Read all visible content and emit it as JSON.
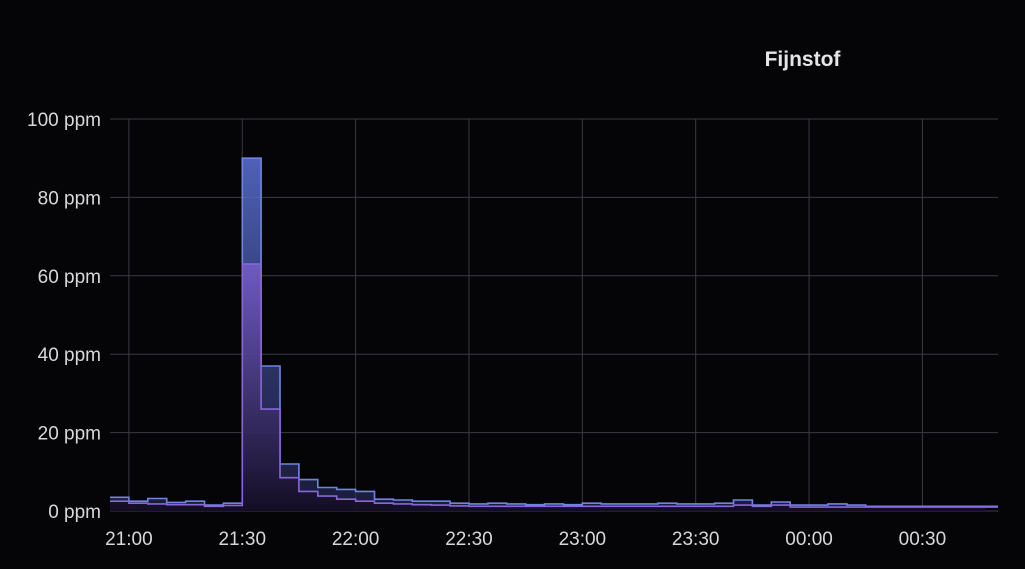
{
  "chart_data": {
    "type": "area",
    "title": "Fijnstof",
    "xlabel": "",
    "ylabel": "",
    "y_unit": "ppm",
    "ylim": [
      0,
      100
    ],
    "y_ticks": [
      0,
      20,
      40,
      60,
      80,
      100
    ],
    "y_tick_labels": [
      "0 ppm",
      "20 ppm",
      "40 ppm",
      "60 ppm",
      "80 ppm",
      "100 ppm"
    ],
    "x_ticks": [
      "21:00",
      "21:30",
      "22:00",
      "22:30",
      "23:00",
      "23:30",
      "00:00",
      "00:30"
    ],
    "x_start": "20:55",
    "x_end": "00:50",
    "step": "stepped",
    "grid": true,
    "legend": "none",
    "series": [
      {
        "color": "#6f85e4",
        "times": [
          "20:55",
          "21:00",
          "21:05",
          "21:10",
          "21:15",
          "21:20",
          "21:25",
          "21:30",
          "21:35",
          "21:40",
          "21:45",
          "21:50",
          "21:55",
          "22:00",
          "22:05",
          "22:10",
          "22:15",
          "22:20",
          "22:25",
          "22:30",
          "22:35",
          "22:40",
          "22:45",
          "22:50",
          "22:55",
          "23:00",
          "23:05",
          "23:10",
          "23:15",
          "23:20",
          "23:25",
          "23:30",
          "23:35",
          "23:40",
          "23:45",
          "23:50",
          "23:55",
          "00:00",
          "00:05",
          "00:10",
          "00:15",
          "00:20",
          "00:25",
          "00:30",
          "00:35",
          "00:40",
          "00:45",
          "00:50"
        ],
        "values": [
          3.5,
          2.5,
          3.2,
          2.2,
          2.5,
          1.5,
          2.0,
          90,
          37,
          12,
          8,
          6,
          5.5,
          5,
          3,
          2.8,
          2.5,
          2.5,
          2,
          1.8,
          2,
          1.8,
          1.6,
          1.8,
          1.6,
          2,
          1.8,
          1.8,
          1.8,
          2,
          1.8,
          1.8,
          2,
          2.8,
          1.5,
          2.3,
          1.5,
          1.5,
          1.8,
          1.5,
          1.2,
          1.2,
          1.2,
          1.2,
          1.2,
          1.2,
          1.2,
          1.2
        ]
      },
      {
        "color": "#8a66d8",
        "times": [
          "20:55",
          "21:00",
          "21:05",
          "21:10",
          "21:15",
          "21:20",
          "21:25",
          "21:30",
          "21:35",
          "21:40",
          "21:45",
          "21:50",
          "21:55",
          "22:00",
          "22:05",
          "22:10",
          "22:15",
          "22:20",
          "22:25",
          "22:30",
          "22:35",
          "22:40",
          "22:45",
          "22:50",
          "22:55",
          "23:00",
          "23:05",
          "23:10",
          "23:15",
          "23:20",
          "23:25",
          "23:30",
          "23:35",
          "23:40",
          "23:45",
          "23:50",
          "23:55",
          "00:00",
          "00:05",
          "00:10",
          "00:15",
          "00:20",
          "00:25",
          "00:30",
          "00:35",
          "00:40",
          "00:45",
          "00:50"
        ],
        "values": [
          2.5,
          2.0,
          1.8,
          1.6,
          1.6,
          1.2,
          1.4,
          63,
          26,
          8.5,
          5,
          3.8,
          3,
          2.5,
          2,
          1.8,
          1.6,
          1.5,
          1.3,
          1.2,
          1.2,
          1.2,
          1.2,
          1.2,
          1.2,
          1.2,
          1.2,
          1.2,
          1.2,
          1.2,
          1.2,
          1.2,
          1.2,
          1.5,
          1.2,
          1.5,
          1.0,
          1.0,
          1.0,
          1.0,
          1.0,
          1.0,
          1.0,
          1.0,
          1.0,
          1.0,
          1.0,
          1.0
        ]
      }
    ]
  }
}
